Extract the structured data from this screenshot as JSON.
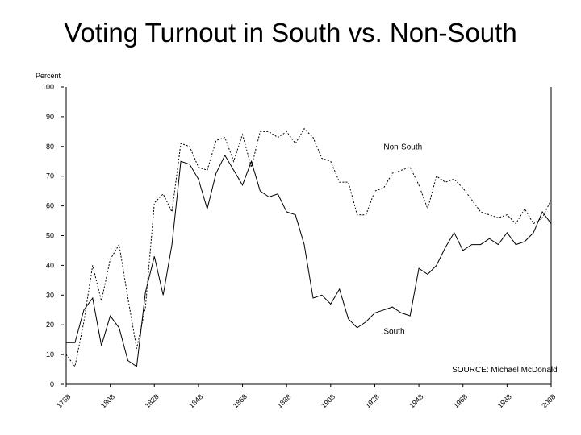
{
  "title": "Voting Turnout in South vs. Non-South",
  "chart_data": {
    "type": "line",
    "ylabel": "Percent",
    "xlabel": "",
    "xlim": [
      1788,
      2008
    ],
    "ylim": [
      0,
      100
    ],
    "yticks": [
      0,
      10,
      20,
      30,
      40,
      50,
      60,
      70,
      80,
      90,
      100
    ],
    "xticks": [
      1788,
      1808,
      1828,
      1848,
      1868,
      1888,
      1908,
      1928,
      1948,
      1968,
      1988,
      2008
    ],
    "grid": false,
    "series": [
      {
        "name": "Non-South",
        "style": "dotted",
        "x": [
          1788,
          1792,
          1796,
          1800,
          1804,
          1808,
          1812,
          1816,
          1820,
          1824,
          1828,
          1832,
          1836,
          1840,
          1844,
          1848,
          1852,
          1856,
          1860,
          1864,
          1868,
          1872,
          1876,
          1880,
          1884,
          1888,
          1892,
          1896,
          1900,
          1904,
          1908,
          1912,
          1916,
          1920,
          1924,
          1928,
          1932,
          1936,
          1940,
          1944,
          1948,
          1952,
          1956,
          1960,
          1964,
          1968,
          1972,
          1976,
          1980,
          1984,
          1988,
          1992,
          1996,
          2000,
          2004,
          2008
        ],
        "y": [
          10,
          6,
          21,
          40,
          28,
          42,
          47,
          29,
          12,
          26,
          61,
          64,
          58,
          81,
          80,
          73,
          72,
          82,
          83,
          75,
          84,
          73,
          85,
          85,
          83,
          85,
          81,
          86,
          83,
          76,
          75,
          68,
          68,
          57,
          57,
          65,
          66,
          71,
          72,
          73,
          67,
          59,
          70,
          68,
          69,
          66,
          62,
          58,
          57,
          56,
          57,
          54,
          59,
          54,
          56,
          62
        ]
      },
      {
        "name": "South",
        "style": "solid",
        "x": [
          1788,
          1792,
          1796,
          1800,
          1804,
          1808,
          1812,
          1816,
          1820,
          1824,
          1828,
          1832,
          1836,
          1840,
          1844,
          1848,
          1852,
          1856,
          1860,
          1864,
          1868,
          1872,
          1876,
          1880,
          1884,
          1888,
          1892,
          1896,
          1900,
          1904,
          1908,
          1912,
          1916,
          1920,
          1924,
          1928,
          1932,
          1936,
          1940,
          1944,
          1948,
          1952,
          1956,
          1960,
          1964,
          1968,
          1972,
          1976,
          1980,
          1984,
          1988,
          1992,
          1996,
          2000,
          2004,
          2008
        ],
        "y": [
          14,
          14,
          25,
          29,
          13,
          23,
          19,
          8,
          6,
          31,
          43,
          30,
          47,
          75,
          74,
          69,
          59,
          71,
          77,
          72,
          67,
          75,
          65,
          63,
          64,
          58,
          57,
          47,
          29,
          30,
          27,
          32,
          22,
          19,
          21,
          24,
          25,
          26,
          24,
          23,
          39,
          37,
          40,
          46,
          51,
          45,
          47,
          47,
          49,
          47,
          51,
          47,
          48,
          51,
          58,
          54
        ]
      }
    ],
    "annotations": [
      {
        "text": "Non-South",
        "x": 1932,
        "y": 79
      },
      {
        "text": "South",
        "x": 1932,
        "y": 17
      },
      {
        "text": "SOURCE: Michael McDonald",
        "x": 1963,
        "y": 4
      }
    ]
  }
}
